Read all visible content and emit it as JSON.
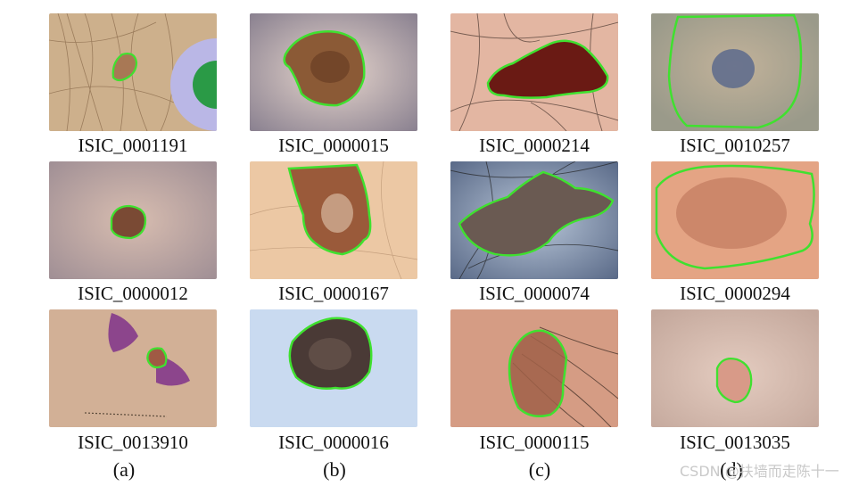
{
  "figure": {
    "grid": [
      [
        "ISIC_0001191",
        "ISIC_0000015",
        "ISIC_0000214",
        "ISIC_0010257"
      ],
      [
        "ISIC_0000012",
        "ISIC_0000167",
        "ISIC_0000074",
        "ISIC_0000294"
      ],
      [
        "ISIC_0013910",
        "ISIC_0000016",
        "ISIC_0000115",
        "ISIC_0013035"
      ]
    ],
    "column_labels": [
      "(a)",
      "(b)",
      "(c)",
      "(d)"
    ],
    "contour_color": "#3fe12f"
  },
  "watermark": "CSDN @扶墙而走陈十一"
}
